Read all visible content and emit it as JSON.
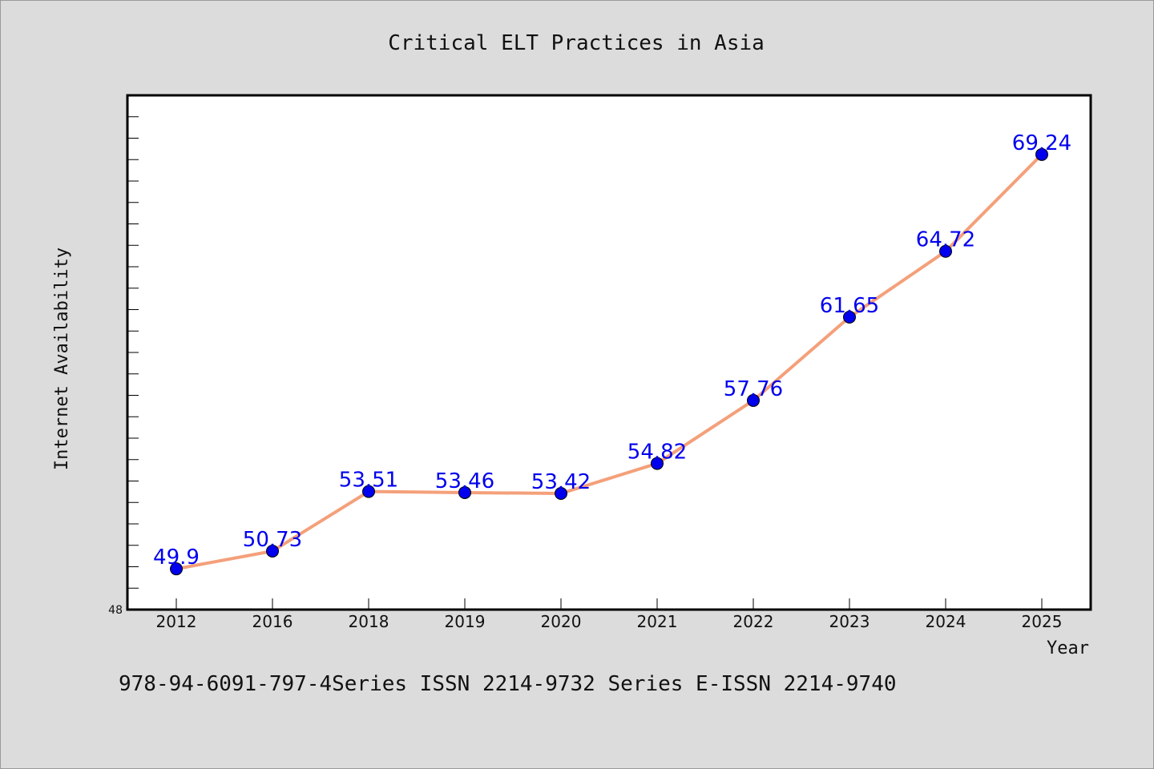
{
  "chart_data": {
    "type": "line",
    "title": "Critical ELT Practices in Asia",
    "xlabel": "Year",
    "ylabel": "Internet Availability",
    "categories": [
      "2012",
      "2016",
      "2018",
      "2019",
      "2020",
      "2021",
      "2022",
      "2023",
      "2024",
      "2025"
    ],
    "series": [
      {
        "values": [
          49.9,
          50.73,
          53.51,
          53.46,
          53.42,
          54.82,
          57.76,
          61.65,
          64.72,
          69.24
        ],
        "data_labels": [
          "49.9",
          "50.73",
          "53.51",
          "53.46",
          "53.42",
          "54.82",
          "57.76",
          "61.65",
          "64.72",
          "69.24"
        ]
      }
    ],
    "ylim": [
      48,
      72
    ],
    "y_tick_labels": [
      "48"
    ],
    "grid": false,
    "legend": "none",
    "colors": {
      "line": "#f4a07a",
      "marker": "#0000ee",
      "data_label": "#0000ee",
      "background": "#dcdcdc",
      "plot_background": "#ffffff"
    }
  },
  "footer": {
    "text": "978-94-6091-797-4Series ISSN 2214-9732 Series E-ISSN 2214-9740"
  }
}
